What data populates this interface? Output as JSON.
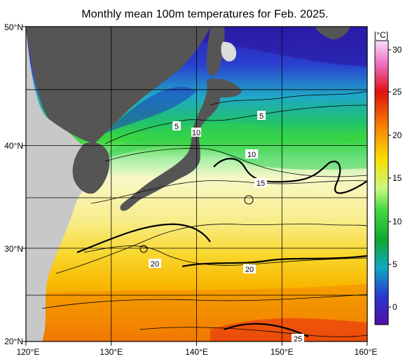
{
  "title": "Monthly mean 100m temperatures for Feb. 2025.",
  "lat_labels": [
    "50°N",
    "40°N",
    "30°N",
    "20°N"
  ],
  "lon_labels": [
    "120°E",
    "130°E",
    "140°E",
    "150°E",
    "160°E"
  ],
  "colorbar": {
    "unit": "[°C]",
    "ticks": [
      "30",
      "25",
      "20",
      "15",
      "10",
      "5",
      "0"
    ],
    "range": [
      -2,
      32
    ]
  },
  "isotherm_labels": [
    {
      "text": "5"
    },
    {
      "text": "5"
    },
    {
      "text": "10"
    },
    {
      "text": "10"
    },
    {
      "text": "15"
    },
    {
      "text": "20"
    },
    {
      "text": "20"
    },
    {
      "text": "25"
    }
  ],
  "colors": {
    "land": "#555555",
    "other_land": "#c8c8c8",
    "missing_ice": "#dcdcdc"
  }
}
